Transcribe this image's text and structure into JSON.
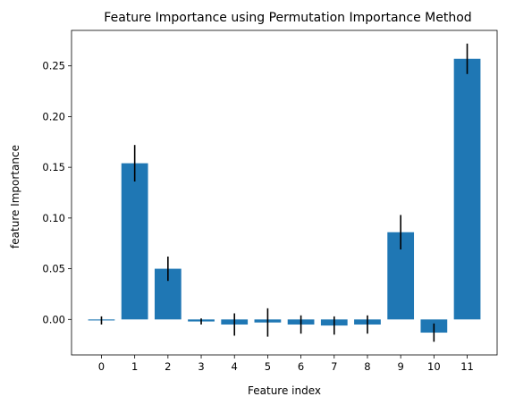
{
  "chart_data": {
    "type": "bar",
    "title": "Feature Importance using Permutation Importance Method",
    "xlabel": "Feature index",
    "ylabel": "feature Importance",
    "categories": [
      "0",
      "1",
      "2",
      "3",
      "4",
      "5",
      "6",
      "7",
      "8",
      "9",
      "10",
      "11"
    ],
    "values": [
      -0.001,
      0.154,
      0.05,
      -0.002,
      -0.005,
      -0.003,
      -0.005,
      -0.006,
      -0.005,
      0.086,
      -0.013,
      0.257
    ],
    "errors": [
      0.004,
      0.018,
      0.012,
      0.003,
      0.011,
      0.014,
      0.009,
      0.009,
      0.009,
      0.017,
      0.009,
      0.015
    ],
    "ylim": [
      -0.035,
      0.285
    ],
    "yticks": [
      0.0,
      0.05,
      0.1,
      0.15,
      0.2,
      0.25
    ],
    "ytick_labels": [
      "0.00",
      "0.05",
      "0.10",
      "0.15",
      "0.20",
      "0.25"
    ],
    "bar_color": "#1f77b4",
    "error_color": "#000000",
    "grid": false,
    "legend": "none"
  }
}
